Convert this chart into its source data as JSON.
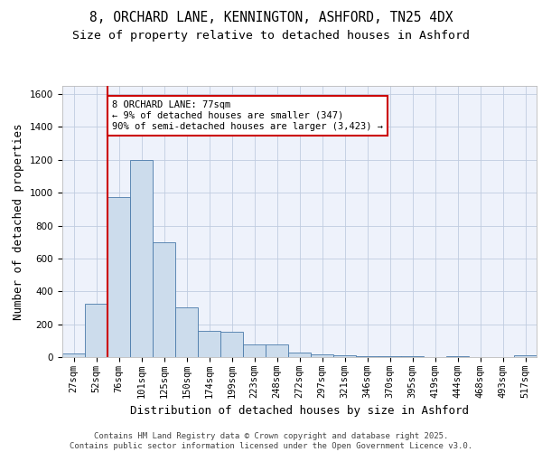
{
  "title_line1": "8, ORCHARD LANE, KENNINGTON, ASHFORD, TN25 4DX",
  "title_line2": "Size of property relative to detached houses in Ashford",
  "xlabel": "Distribution of detached houses by size in Ashford",
  "ylabel": "Number of detached properties",
  "categories": [
    "27sqm",
    "52sqm",
    "76sqm",
    "101sqm",
    "125sqm",
    "150sqm",
    "174sqm",
    "199sqm",
    "223sqm",
    "248sqm",
    "272sqm",
    "297sqm",
    "321sqm",
    "346sqm",
    "370sqm",
    "395sqm",
    "419sqm",
    "444sqm",
    "468sqm",
    "493sqm",
    "517sqm"
  ],
  "values": [
    22,
    325,
    975,
    1200,
    700,
    305,
    160,
    155,
    75,
    75,
    25,
    15,
    10,
    5,
    5,
    5,
    2,
    5,
    2,
    2,
    10
  ],
  "bar_color": "#ccdcec",
  "bar_edge_color": "#4a7aaa",
  "vline_color": "#cc0000",
  "vline_x_index": 2,
  "annotation_text": "8 ORCHARD LANE: 77sqm\n← 9% of detached houses are smaller (347)\n90% of semi-detached houses are larger (3,423) →",
  "annotation_box_color": "#ffffff",
  "annotation_box_edge": "#cc0000",
  "ylim": [
    0,
    1650
  ],
  "yticks": [
    0,
    200,
    400,
    600,
    800,
    1000,
    1200,
    1400,
    1600
  ],
  "grid_color": "#c0cce0",
  "background_color": "#eef2fb",
  "footer_text": "Contains HM Land Registry data © Crown copyright and database right 2025.\nContains public sector information licensed under the Open Government Licence v3.0.",
  "title_fontsize": 10.5,
  "subtitle_fontsize": 9.5,
  "axis_label_fontsize": 9,
  "tick_fontsize": 7.5,
  "annotation_fontsize": 7.5,
  "footer_fontsize": 6.5
}
